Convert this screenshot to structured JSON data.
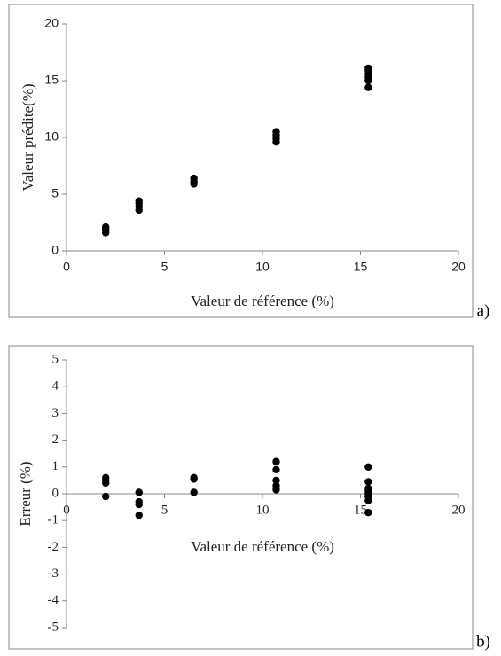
{
  "chart_data": [
    {
      "type": "scatter",
      "color": "#000000",
      "x": [
        2,
        2,
        2,
        2,
        3.7,
        3.7,
        3.7,
        3.7,
        6.5,
        6.5,
        6.5,
        10.7,
        10.7,
        10.7,
        10.7,
        15.4,
        15.4,
        15.4,
        15.4,
        15.4,
        15.4
      ],
      "y": [
        1.6,
        1.8,
        2.0,
        2.1,
        3.6,
        3.9,
        4.2,
        4.4,
        5.9,
        6.1,
        6.4,
        9.6,
        9.9,
        10.2,
        10.5,
        14.4,
        15.0,
        15.3,
        15.6,
        15.9,
        16.1
      ],
      "xlim": [
        0,
        20
      ],
      "ylim": [
        0,
        20
      ],
      "xticks": [
        0,
        5,
        10,
        15,
        20
      ],
      "yticks": [
        0,
        5,
        10,
        15,
        20
      ],
      "xlabel": "Valeur de référence (%)",
      "ylabel": "Valeur prédite(%)",
      "panel_label": "a)"
    },
    {
      "type": "scatter",
      "color": "#000000",
      "x": [
        2,
        2,
        2,
        2,
        3.7,
        3.7,
        3.7,
        3.7,
        6.5,
        6.5,
        6.5,
        10.7,
        10.7,
        10.7,
        10.7,
        10.7,
        15.4,
        15.4,
        15.4,
        15.4,
        15.4,
        15.4,
        15.4,
        15.4
      ],
      "y": [
        0.6,
        0.5,
        0.4,
        -0.1,
        0.05,
        -0.3,
        -0.4,
        -0.8,
        0.6,
        0.55,
        0.05,
        1.2,
        0.9,
        0.5,
        0.3,
        0.15,
        1.0,
        0.45,
        0.2,
        0.1,
        0,
        -0.1,
        -0.25,
        -0.7
      ],
      "xlim": [
        0,
        20
      ],
      "ylim": [
        -5,
        5
      ],
      "xticks": [
        0,
        5,
        10,
        15,
        20
      ],
      "yticks": [
        -5,
        -4,
        -3,
        -2,
        -1,
        0,
        1,
        2,
        3,
        4,
        5
      ],
      "xlabel": "Valeur de référence (%)",
      "ylabel": "Erreur (%)",
      "panel_label": "b)"
    }
  ]
}
